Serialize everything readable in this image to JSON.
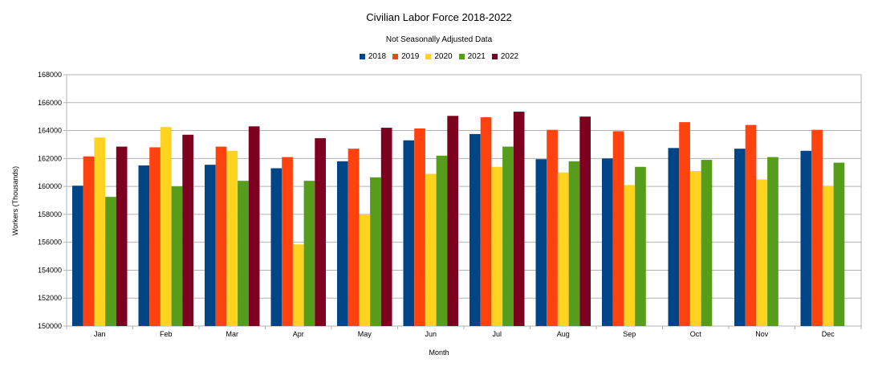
{
  "chart_data": {
    "type": "bar",
    "title": "Civilian Labor Force 2018-2022",
    "subtitle": "Not Seasonally Adjusted Data",
    "xlabel": "Month",
    "ylabel": "Workers (Thousands)",
    "ylim": [
      150000,
      168000
    ],
    "yticks": [
      150000,
      152000,
      154000,
      156000,
      158000,
      160000,
      162000,
      164000,
      166000,
      168000
    ],
    "ytick_labels": [
      "150000",
      "152000",
      "154000",
      "156000",
      "158000",
      "160000",
      "162000",
      "164000",
      "166000",
      "168000"
    ],
    "grid": true,
    "legend_position": "top-center",
    "categories": [
      "Jan",
      "Feb",
      "Mar",
      "Apr",
      "May",
      "Jun",
      "Jul",
      "Aug",
      "Sep",
      "Oct",
      "Nov",
      "Dec"
    ],
    "series": [
      {
        "name": "2018",
        "color": "#004586",
        "values": [
          160050,
          161500,
          161550,
          161300,
          161800,
          163300,
          163750,
          161950,
          162000,
          162750,
          162700,
          162550
        ]
      },
      {
        "name": "2019",
        "color": "#ff420e",
        "values": [
          162150,
          162800,
          162850,
          162100,
          162700,
          164150,
          164950,
          164050,
          163950,
          164600,
          164400,
          164050
        ]
      },
      {
        "name": "2020",
        "color": "#ffd320",
        "values": [
          163500,
          164250,
          162550,
          155850,
          158000,
          160900,
          161400,
          161000,
          160100,
          161100,
          160500,
          160050
        ]
      },
      {
        "name": "2021",
        "color": "#579d1c",
        "values": [
          159250,
          160000,
          160400,
          160400,
          160650,
          162200,
          162850,
          161800,
          161400,
          161900,
          162100,
          161700
        ]
      },
      {
        "name": "2022",
        "color": "#7e0021",
        "values": [
          162850,
          163700,
          164300,
          163450,
          164200,
          165050,
          165350,
          165000,
          null,
          null,
          null,
          null
        ]
      }
    ]
  }
}
